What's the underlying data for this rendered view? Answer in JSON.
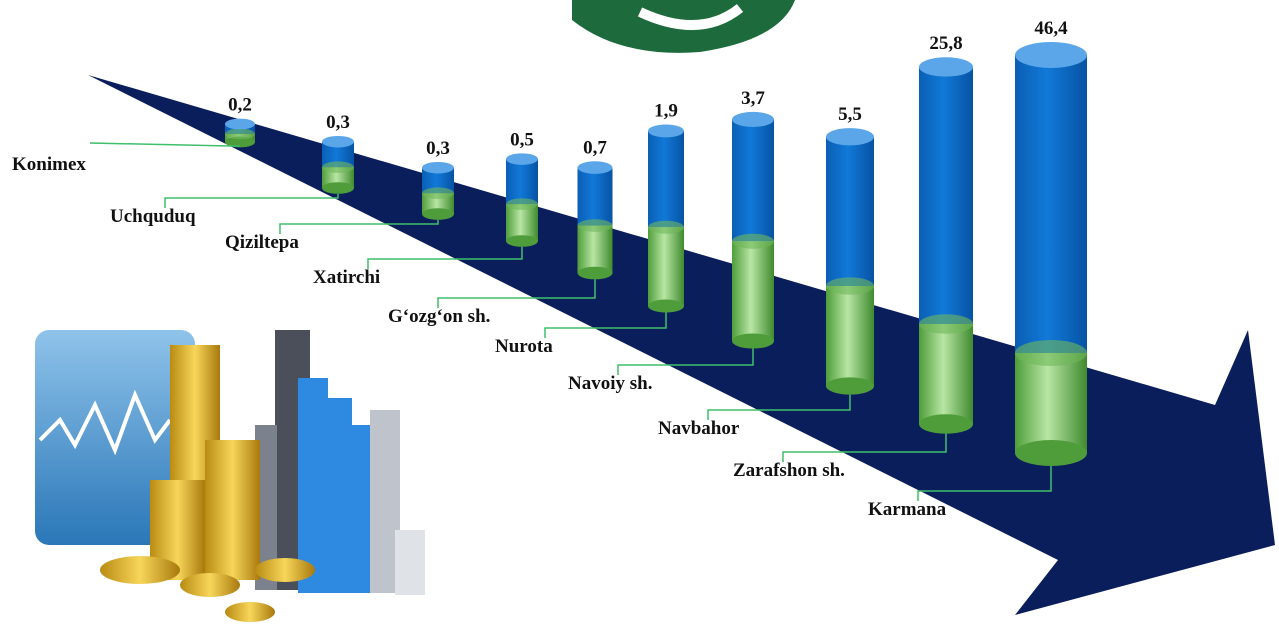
{
  "chart_data": {
    "type": "bar",
    "categories": [
      "Konimex",
      "Uchquduq",
      "Qiziltepa",
      "Xatirchi",
      "G‘ozg‘on sh.",
      "Nurota",
      "Navoiy sh.",
      "Navbahor",
      "Zarafshon sh.",
      "Karmana"
    ],
    "values": [
      0.2,
      0.3,
      0.3,
      0.5,
      0.7,
      1.9,
      3.7,
      5.5,
      25.8,
      46.4
    ],
    "value_labels": [
      "0,2",
      "0,3",
      "0,3",
      "0,5",
      "0,7",
      "1,9",
      "3,7",
      "5,5",
      "25,8",
      "46,4"
    ],
    "color": "#0a6bc4"
  }
}
